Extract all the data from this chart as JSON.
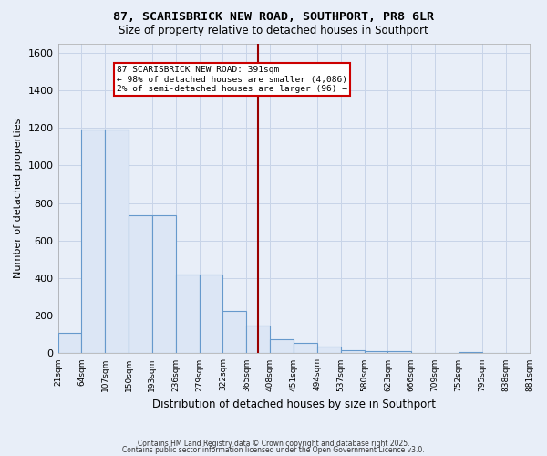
{
  "title": "87, SCARISBRICK NEW ROAD, SOUTHPORT, PR8 6LR",
  "subtitle": "Size of property relative to detached houses in Southport",
  "xlabel": "Distribution of detached houses by size in Southport",
  "ylabel": "Number of detached properties",
  "footer1": "Contains HM Land Registry data © Crown copyright and database right 2025.",
  "footer2": "Contains public sector information licensed under the Open Government Licence v3.0.",
  "bin_labels": [
    "21sqm",
    "64sqm",
    "107sqm",
    "150sqm",
    "193sqm",
    "236sqm",
    "279sqm",
    "322sqm",
    "365sqm",
    "408sqm",
    "451sqm",
    "494sqm",
    "537sqm",
    "580sqm",
    "623sqm",
    "666sqm",
    "709sqm",
    "752sqm",
    "795sqm",
    "838sqm",
    "881sqm"
  ],
  "bar_heights": [
    110,
    1190,
    1190,
    735,
    735,
    420,
    420,
    225,
    148,
    73,
    55,
    35,
    18,
    12,
    10,
    0,
    0,
    8,
    0,
    0
  ],
  "bar_color": "#dce6f5",
  "bar_edge_color": "#6699cc",
  "ylim": [
    0,
    1650
  ],
  "yticks": [
    0,
    200,
    400,
    600,
    800,
    1000,
    1200,
    1400,
    1600
  ],
  "vline_x": 8.5,
  "vline_color": "#990000",
  "annotation_text": "87 SCARISBRICK NEW ROAD: 391sqm\n← 98% of detached houses are smaller (4,086)\n2% of semi-detached houses are larger (96) →",
  "annotation_box_color": "#ffffff",
  "annotation_box_edge": "#cc0000",
  "bg_color": "#e8eef8",
  "grid_color": "#c8d4e8",
  "n_bins": 20
}
